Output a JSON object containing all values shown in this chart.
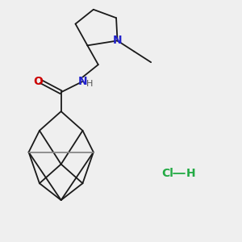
{
  "background_color": "#efefef",
  "bond_color": "#1a1a1a",
  "atom_colors": {
    "O": "#cc0000",
    "N_amide": "#2222cc",
    "N_pyrr": "#2222cc",
    "Cl": "#22aa44",
    "H_hcl": "#22aa44",
    "H": "#555555"
  },
  "figsize": [
    3.0,
    3.0
  ],
  "dpi": 100
}
